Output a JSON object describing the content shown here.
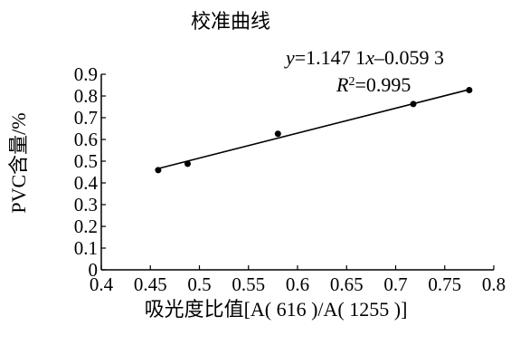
{
  "chart_data": {
    "type": "scatter",
    "title": "校准曲线",
    "xlabel": "吸光度比值[A( 616 )/A( 1255 )]",
    "ylabel": "PVC含量/%",
    "xlim": [
      0.4,
      0.8
    ],
    "ylim": [
      0,
      0.9
    ],
    "x_ticks": [
      "0.4",
      "0.45",
      "0.5",
      "0.55",
      "0.6",
      "0.65",
      "0.7",
      "0.75",
      "0.8"
    ],
    "y_ticks": [
      "0",
      "0.1",
      "0.2",
      "0.3",
      "0.4",
      "0.5",
      "0.6",
      "0.7",
      "0.8",
      "0.9"
    ],
    "points": [
      {
        "x": 0.458,
        "y": 0.459
      },
      {
        "x": 0.488,
        "y": 0.488
      },
      {
        "x": 0.58,
        "y": 0.626
      },
      {
        "x": 0.718,
        "y": 0.763
      },
      {
        "x": 0.775,
        "y": 0.827
      }
    ],
    "fit": {
      "slope": 1.1471,
      "intercept": -0.0593,
      "x_range": [
        0.455,
        0.777
      ]
    },
    "equation": {
      "y_var": "y",
      "eq_part1": "=1.147 1",
      "x_var": "x",
      "eq_part2": "–0.059 3"
    },
    "r2": {
      "r_var": "R",
      "sup": "2",
      "value_text": "=0.995"
    },
    "grid": false,
    "legend": "none"
  }
}
